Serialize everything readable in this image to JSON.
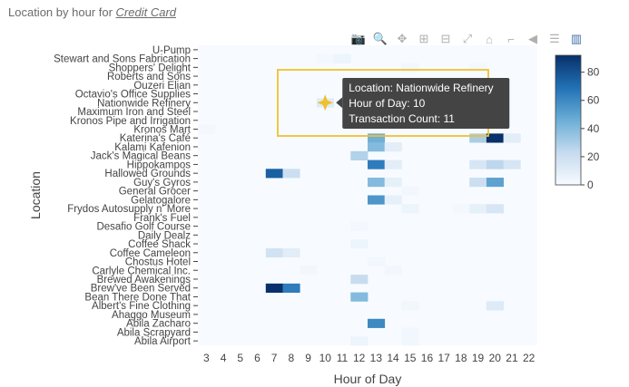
{
  "header": {
    "title_prefix": "Location by hour for",
    "selection": "Credit Card"
  },
  "modebar": [
    {
      "name": "camera-icon",
      "glyph": "📷"
    },
    {
      "name": "zoom-icon",
      "glyph": "🔍",
      "active": true
    },
    {
      "name": "pan-icon",
      "glyph": "✥"
    },
    {
      "name": "zoom-in-icon",
      "glyph": "⊞"
    },
    {
      "name": "zoom-out-icon",
      "glyph": "⊟"
    },
    {
      "name": "autoscale-icon",
      "glyph": "⤢"
    },
    {
      "name": "home-icon",
      "glyph": "⌂"
    },
    {
      "name": "spike-lines-icon",
      "glyph": "⌐"
    },
    {
      "name": "hover-closest-icon",
      "glyph": "◀"
    },
    {
      "name": "hover-compare-icon",
      "glyph": "☰"
    },
    {
      "name": "plotly-logo-icon",
      "glyph": "▥",
      "brand": true
    }
  ],
  "chart_data": {
    "type": "heatmap",
    "xlabel": "Hour of Day",
    "ylabel": "Location",
    "x": [
      3,
      4,
      5,
      6,
      7,
      8,
      9,
      10,
      11,
      12,
      13,
      14,
      15,
      16,
      17,
      18,
      19,
      20,
      21,
      22
    ],
    "xticks": [
      3,
      4,
      5,
      6,
      7,
      8,
      9,
      10,
      11,
      12,
      13,
      14,
      15,
      16,
      17,
      18,
      19,
      20,
      21,
      22
    ],
    "y": [
      "U-Pump",
      "Stewart and Sons Fabrication",
      "Shoppers' Delight",
      "Roberts and Sons",
      "Ouzeri Elian",
      "Octavio's Office Supplies",
      "Nationwide Refinery",
      "Maximum Iron and Steel",
      "Kronos Pipe and Irrigation",
      "Kronos Mart",
      "Katerina's Café",
      "Kalami Kafenion",
      "Jack's Magical Beans",
      "Hippokampos",
      "Hallowed Grounds",
      "Guy's Gyros",
      "General Grocer",
      "Gelatogalore",
      "Frydos Autosupply n' More",
      "Frank's Fuel",
      "Desafio Golf Course",
      "Daily Dealz",
      "Coffee Shack",
      "Coffee Cameleon",
      "Chostus Hotel",
      "Carlyle Chemical Inc.",
      "Brewed Awakenings",
      "Brew've Been Served",
      "Bean There Done That",
      "Albert's Fine Clothing",
      "Ahaggo Museum",
      "Abila Zacharo",
      "Abila Scrapyard",
      "Abila Airport"
    ],
    "z": [
      [
        0,
        0,
        0,
        0,
        0,
        0,
        0,
        0,
        0,
        0,
        0,
        0,
        0,
        0,
        0,
        0,
        0,
        0,
        0,
        0
      ],
      [
        0,
        0,
        0,
        0,
        0,
        0,
        0,
        2,
        5,
        0,
        0,
        0,
        0,
        0,
        0,
        0,
        0,
        0,
        0,
        0
      ],
      [
        0,
        0,
        0,
        0,
        0,
        0,
        0,
        0,
        0,
        0,
        0,
        0,
        3,
        0,
        0,
        0,
        2,
        0,
        0,
        0
      ],
      [
        0,
        0,
        0,
        0,
        0,
        0,
        0,
        0,
        0,
        0,
        0,
        0,
        0,
        0,
        0,
        0,
        0,
        0,
        0,
        0
      ],
      [
        0,
        0,
        0,
        0,
        0,
        0,
        0,
        0,
        0,
        0,
        0,
        0,
        0,
        0,
        0,
        0,
        0,
        5,
        0,
        0
      ],
      [
        0,
        0,
        0,
        0,
        0,
        0,
        0,
        0,
        0,
        0,
        0,
        0,
        0,
        0,
        0,
        0,
        0,
        0,
        0,
        0
      ],
      [
        0,
        0,
        0,
        0,
        0,
        0,
        0,
        11,
        0,
        0,
        0,
        0,
        0,
        0,
        0,
        0,
        0,
        0,
        0,
        0
      ],
      [
        0,
        0,
        0,
        0,
        0,
        0,
        0,
        0,
        0,
        0,
        0,
        0,
        0,
        0,
        0,
        0,
        0,
        0,
        0,
        0
      ],
      [
        0,
        0,
        0,
        0,
        0,
        0,
        0,
        0,
        0,
        0,
        0,
        0,
        0,
        0,
        0,
        0,
        0,
        0,
        0,
        0
      ],
      [
        2,
        0,
        0,
        0,
        0,
        0,
        0,
        0,
        0,
        0,
        0,
        0,
        0,
        0,
        0,
        0,
        0,
        0,
        0,
        0
      ],
      [
        0,
        0,
        0,
        0,
        0,
        0,
        0,
        0,
        0,
        0,
        45,
        0,
        0,
        0,
        0,
        0,
        30,
        92,
        10,
        0
      ],
      [
        0,
        0,
        0,
        0,
        0,
        0,
        0,
        0,
        0,
        0,
        40,
        10,
        0,
        0,
        0,
        0,
        0,
        0,
        0,
        0
      ],
      [
        0,
        0,
        0,
        0,
        0,
        0,
        0,
        0,
        0,
        28,
        0,
        0,
        0,
        0,
        0,
        0,
        0,
        0,
        0,
        0
      ],
      [
        0,
        0,
        0,
        0,
        0,
        0,
        0,
        0,
        0,
        0,
        65,
        10,
        0,
        0,
        0,
        0,
        15,
        25,
        15,
        0
      ],
      [
        0,
        0,
        0,
        0,
        75,
        20,
        0,
        0,
        0,
        0,
        0,
        0,
        0,
        0,
        0,
        0,
        0,
        0,
        0,
        0
      ],
      [
        0,
        0,
        0,
        0,
        0,
        0,
        0,
        0,
        0,
        0,
        40,
        8,
        0,
        0,
        0,
        0,
        20,
        50,
        0,
        0
      ],
      [
        0,
        0,
        0,
        0,
        0,
        0,
        0,
        0,
        0,
        0,
        0,
        0,
        3,
        0,
        0,
        0,
        0,
        0,
        0,
        0
      ],
      [
        0,
        0,
        0,
        0,
        0,
        0,
        0,
        0,
        0,
        0,
        55,
        8,
        0,
        0,
        0,
        0,
        0,
        0,
        0,
        0
      ],
      [
        0,
        0,
        0,
        0,
        0,
        0,
        0,
        0,
        0,
        0,
        0,
        0,
        5,
        0,
        0,
        2,
        8,
        15,
        0,
        0
      ],
      [
        0,
        0,
        0,
        0,
        0,
        0,
        0,
        0,
        0,
        0,
        0,
        0,
        0,
        0,
        0,
        0,
        0,
        0,
        0,
        0
      ],
      [
        0,
        0,
        0,
        0,
        0,
        0,
        0,
        0,
        0,
        2,
        0,
        0,
        0,
        0,
        0,
        0,
        0,
        0,
        0,
        0
      ],
      [
        0,
        0,
        0,
        0,
        0,
        0,
        0,
        0,
        0,
        0,
        0,
        0,
        0,
        0,
        0,
        0,
        0,
        0,
        0,
        0
      ],
      [
        0,
        0,
        0,
        0,
        0,
        0,
        0,
        0,
        0,
        5,
        0,
        0,
        0,
        0,
        0,
        0,
        0,
        0,
        0,
        0
      ],
      [
        0,
        0,
        0,
        0,
        18,
        10,
        0,
        0,
        0,
        0,
        0,
        0,
        0,
        0,
        0,
        0,
        0,
        0,
        0,
        0
      ],
      [
        0,
        0,
        0,
        0,
        0,
        0,
        0,
        0,
        0,
        0,
        3,
        0,
        0,
        0,
        0,
        0,
        0,
        0,
        0,
        0
      ],
      [
        0,
        0,
        0,
        0,
        0,
        0,
        3,
        0,
        0,
        0,
        0,
        3,
        0,
        0,
        0,
        0,
        0,
        0,
        0,
        0
      ],
      [
        0,
        0,
        0,
        0,
        0,
        0,
        0,
        0,
        0,
        22,
        0,
        0,
        0,
        0,
        0,
        0,
        0,
        0,
        0,
        0
      ],
      [
        0,
        0,
        0,
        0,
        92,
        65,
        0,
        0,
        0,
        0,
        0,
        0,
        0,
        0,
        0,
        0,
        0,
        0,
        0,
        0
      ],
      [
        0,
        0,
        0,
        0,
        0,
        0,
        0,
        0,
        0,
        40,
        0,
        0,
        0,
        0,
        0,
        0,
        0,
        0,
        0,
        0
      ],
      [
        0,
        0,
        0,
        0,
        0,
        0,
        0,
        0,
        0,
        0,
        0,
        0,
        3,
        0,
        0,
        0,
        0,
        12,
        0,
        0
      ],
      [
        0,
        0,
        0,
        0,
        0,
        0,
        0,
        0,
        0,
        0,
        0,
        0,
        0,
        0,
        0,
        0,
        0,
        0,
        0,
        0
      ],
      [
        0,
        0,
        0,
        0,
        0,
        0,
        0,
        0,
        0,
        0,
        60,
        0,
        0,
        0,
        0,
        0,
        0,
        0,
        0,
        0
      ],
      [
        0,
        0,
        0,
        0,
        0,
        0,
        0,
        0,
        0,
        0,
        0,
        0,
        3,
        0,
        0,
        0,
        0,
        0,
        0,
        0
      ],
      [
        0,
        0,
        0,
        0,
        0,
        0,
        0,
        0,
        0,
        5,
        0,
        0,
        3,
        0,
        0,
        0,
        0,
        0,
        0,
        0
      ]
    ],
    "zmin": 0,
    "zmax": 92,
    "colorscale": [
      "#f7fbff",
      "#c6dbef",
      "#6baed6",
      "#2171b5",
      "#08306b"
    ],
    "colorbar_ticks": [
      0,
      20,
      40,
      60,
      80
    ],
    "hover": {
      "location_label": "Location:",
      "location": "Nationwide Refinery",
      "hour_label": "Hour of Day:",
      "hour": 10,
      "count_label": "Transaction Count:",
      "count": 11
    },
    "highlight_color": "#f0c030"
  }
}
